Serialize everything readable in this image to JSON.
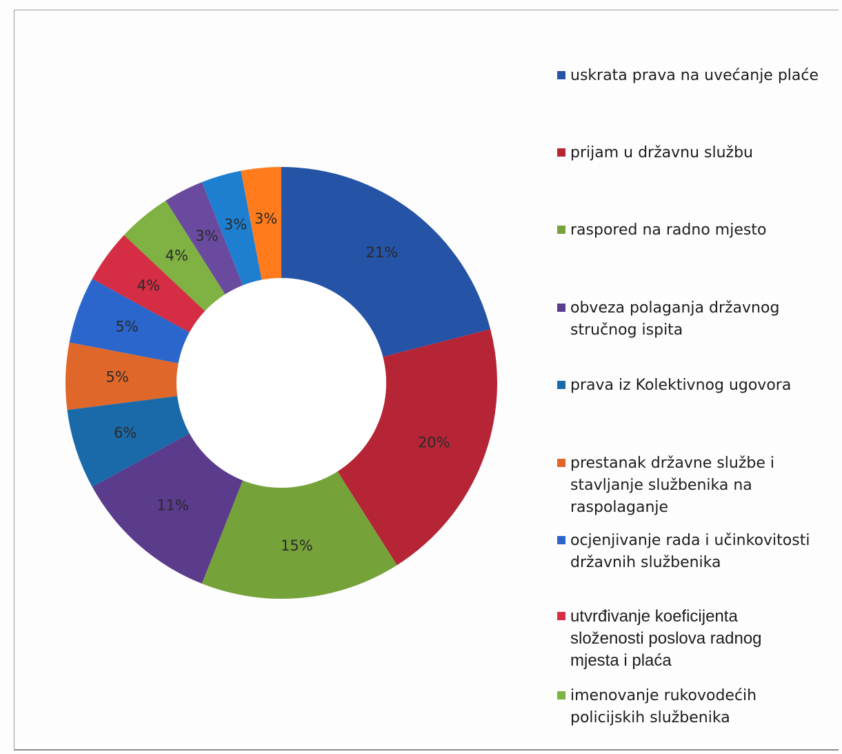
{
  "chart_data": {
    "type": "pie",
    "variant": "donut",
    "title": "",
    "legend_position": "right",
    "slices": [
      {
        "label": "uskrata prava na uvećanje plaće",
        "value": 21,
        "display": "21%",
        "color": "#2553a6"
      },
      {
        "label": "prijam u državnu službu",
        "value": 20,
        "display": "20%",
        "color": "#b52536"
      },
      {
        "label": "raspored na radno mjesto",
        "value": 15,
        "display": "15%",
        "color": "#76a23a"
      },
      {
        "label": "obveza polaganja državnog\nstručnog ispita",
        "value": 11,
        "display": "11%",
        "color": "#5b3b8c"
      },
      {
        "label": "prava iz Kolektivnog ugovora",
        "value": 6,
        "display": "6%",
        "color": "#1a6aaa"
      },
      {
        "label": "prestanak državne službe i\nstavljanje službenika na\nraspolaganje",
        "value": 5,
        "display": "5%",
        "color": "#e0672a"
      },
      {
        "label": "ocjenjivanje rada i učinkovitosti\ndržavnih službenika",
        "value": 5,
        "display": "5%",
        "color": "#2a66cc"
      },
      {
        "label": "utvrđivanje koeficijenta\nsloženosti poslova radnog\nmjesta i plaća",
        "value": 4,
        "display": "4%",
        "color": "#d42d44"
      },
      {
        "label": "imenovanje rukovodećih\npolicijskih službenika",
        "value": 4,
        "display": "4%",
        "color": "#7fb242"
      },
      {
        "label": "",
        "value": 3,
        "display": "3%",
        "color": "#6a4a9e"
      },
      {
        "label": "",
        "value": 3,
        "display": "3%",
        "color": "#1e7fd0"
      },
      {
        "label": "",
        "value": 3,
        "display": "3%",
        "color": "#ff7b1c"
      }
    ]
  }
}
